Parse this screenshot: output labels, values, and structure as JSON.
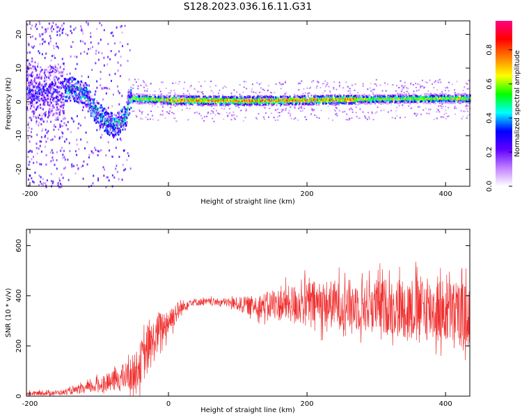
{
  "title": "S128.2023.036.16.11.G31",
  "charts": [
    {
      "type": "heatmap",
      "xlabel": "Height of straight line (km)",
      "ylabel": "Frequency (Hz)",
      "xlim": [
        -205,
        435
      ],
      "ylim": [
        -25,
        24
      ],
      "xticks": [
        -200,
        0,
        200,
        400
      ],
      "yticks": [
        -20,
        -10,
        0,
        10,
        20
      ],
      "colorbar": {
        "label": "Normalized spectral amplitude",
        "range": [
          0,
          0.97
        ],
        "ticks": [
          0.0,
          0.2,
          0.4,
          0.6,
          0.8
        ],
        "tick_labels": [
          "0.0",
          "0.2",
          "0.4",
          "0.6",
          "0.8"
        ],
        "colors": [
          "#ffffff",
          "#c080ff",
          "#6000ff",
          "#0000ff",
          "#00ffff",
          "#00ff00",
          "#ffff00",
          "#ff8000",
          "#ff0000",
          "#ff0080"
        ]
      },
      "ridge": [
        {
          "x": -195,
          "f": 3
        },
        {
          "x": -180,
          "f": 2
        },
        {
          "x": -160,
          "f": 3
        },
        {
          "x": -140,
          "f": 4
        },
        {
          "x": -120,
          "f": 2
        },
        {
          "x": -110,
          "f": -2
        },
        {
          "x": -100,
          "f": -4
        },
        {
          "x": -90,
          "f": -6
        },
        {
          "x": -80,
          "f": -7
        },
        {
          "x": -70,
          "f": -6
        },
        {
          "x": -62,
          "f": -4
        },
        {
          "x": -57,
          "f": 1
        },
        {
          "x": 0,
          "f": 0.5
        },
        {
          "x": 100,
          "f": 0.3
        },
        {
          "x": 200,
          "f": 0.5
        },
        {
          "x": 300,
          "f": 0.8
        },
        {
          "x": 400,
          "f": 1
        },
        {
          "x": 435,
          "f": 1
        }
      ]
    },
    {
      "type": "line",
      "xlabel": "Height of straight line (km)",
      "ylabel": "SNR (10 * v/v)",
      "xlim": [
        -205,
        435
      ],
      "ylim": [
        0,
        665
      ],
      "xticks": [
        -200,
        0,
        200,
        400
      ],
      "yticks": [
        0,
        200,
        400,
        600
      ],
      "color": "#f03030",
      "envelope": [
        {
          "x": -205,
          "mean": 10,
          "spread": 8
        },
        {
          "x": -150,
          "mean": 15,
          "spread": 10
        },
        {
          "x": -120,
          "mean": 30,
          "spread": 20
        },
        {
          "x": -80,
          "mean": 60,
          "spread": 40
        },
        {
          "x": -50,
          "mean": 90,
          "spread": 70
        },
        {
          "x": -30,
          "mean": 180,
          "spread": 100
        },
        {
          "x": -10,
          "mean": 270,
          "spread": 70
        },
        {
          "x": 10,
          "mean": 330,
          "spread": 45
        },
        {
          "x": 30,
          "mean": 375,
          "spread": 15
        },
        {
          "x": 80,
          "mean": 375,
          "spread": 15
        },
        {
          "x": 120,
          "mean": 360,
          "spread": 40
        },
        {
          "x": 200,
          "mean": 370,
          "spread": 90
        },
        {
          "x": 300,
          "mean": 360,
          "spread": 110
        },
        {
          "x": 370,
          "mean": 350,
          "spread": 130
        },
        {
          "x": 435,
          "mean": 320,
          "spread": 130
        }
      ]
    }
  ]
}
